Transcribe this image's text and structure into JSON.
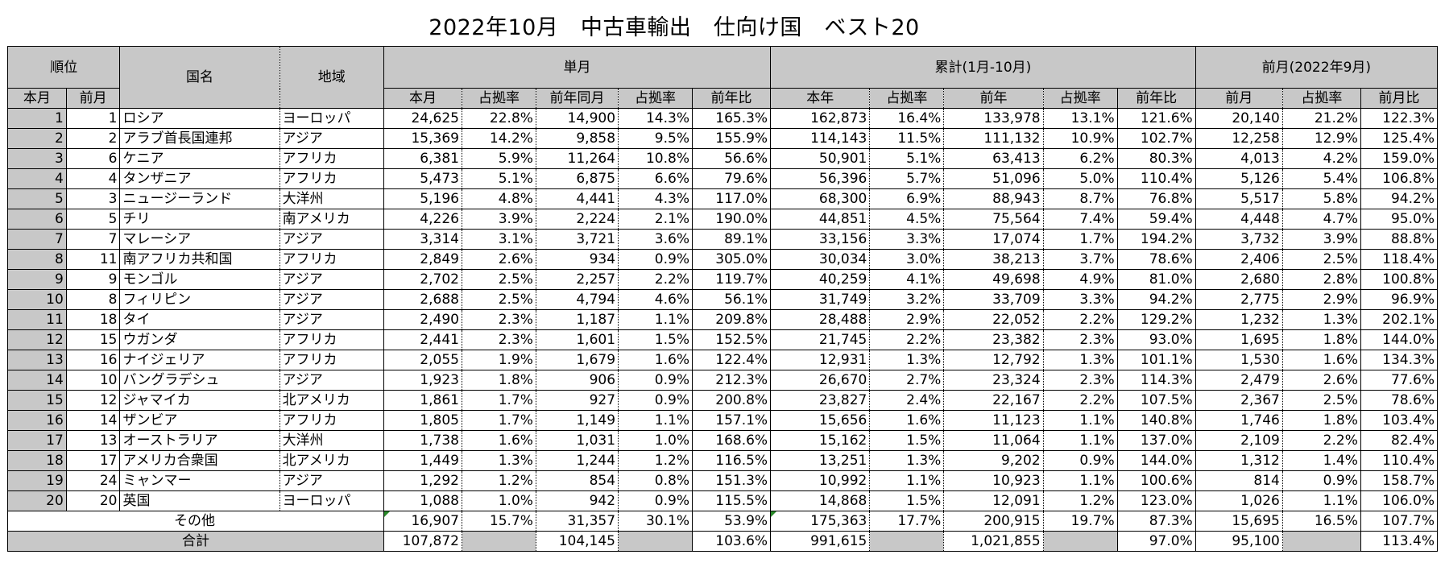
{
  "title": "2022年10月　中古車輸出　仕向け国　ベスト20",
  "headers": {
    "rank": "順位",
    "country": "国名",
    "region": "地域",
    "monthly": "単月",
    "cumulative": "累計(1月-10月)",
    "prev_month_group": "前月(2022年9月)",
    "rank_this": "本月",
    "rank_prev": "前月",
    "m_this": "本月",
    "m_share": "占拠率",
    "m_lastyear": "前年同月",
    "m_share2": "占拠率",
    "m_yoy": "前年比",
    "c_this": "本年",
    "c_share": "占拠率",
    "c_last": "前年",
    "c_share2": "占拠率",
    "c_yoy": "前年比",
    "p_prev": "前月",
    "p_share": "占拠率",
    "p_ratio": "前月比"
  },
  "rows": [
    {
      "r": "1",
      "p": "1",
      "country": "ロシア",
      "region": "ヨーロッパ",
      "m": "24,625",
      "ms": "22.8%",
      "ly": "14,900",
      "lys": "14.3%",
      "yoy": "165.3%",
      "c": "162,873",
      "cs": "16.4%",
      "cl": "133,978",
      "cls": "13.1%",
      "cyoy": "121.6%",
      "pm": "20,140",
      "pms": "21.2%",
      "pr": "122.3%"
    },
    {
      "r": "2",
      "p": "2",
      "country": "アラブ首長国連邦",
      "region": "アジア",
      "m": "15,369",
      "ms": "14.2%",
      "ly": "9,858",
      "lys": "9.5%",
      "yoy": "155.9%",
      "c": "114,143",
      "cs": "11.5%",
      "cl": "111,132",
      "cls": "10.9%",
      "cyoy": "102.7%",
      "pm": "12,258",
      "pms": "12.9%",
      "pr": "125.4%"
    },
    {
      "r": "3",
      "p": "6",
      "country": "ケニア",
      "region": "アフリカ",
      "m": "6,381",
      "ms": "5.9%",
      "ly": "11,264",
      "lys": "10.8%",
      "yoy": "56.6%",
      "c": "50,901",
      "cs": "5.1%",
      "cl": "63,413",
      "cls": "6.2%",
      "cyoy": "80.3%",
      "pm": "4,013",
      "pms": "4.2%",
      "pr": "159.0%"
    },
    {
      "r": "4",
      "p": "4",
      "country": "タンザニア",
      "region": "アフリカ",
      "m": "5,473",
      "ms": "5.1%",
      "ly": "6,875",
      "lys": "6.6%",
      "yoy": "79.6%",
      "c": "56,396",
      "cs": "5.7%",
      "cl": "51,096",
      "cls": "5.0%",
      "cyoy": "110.4%",
      "pm": "5,126",
      "pms": "5.4%",
      "pr": "106.8%"
    },
    {
      "r": "5",
      "p": "3",
      "country": "ニュージーランド",
      "region": "大洋州",
      "m": "5,196",
      "ms": "4.8%",
      "ly": "4,441",
      "lys": "4.3%",
      "yoy": "117.0%",
      "c": "68,300",
      "cs": "6.9%",
      "cl": "88,943",
      "cls": "8.7%",
      "cyoy": "76.8%",
      "pm": "5,517",
      "pms": "5.8%",
      "pr": "94.2%"
    },
    {
      "r": "6",
      "p": "5",
      "country": "チリ",
      "region": "南アメリカ",
      "m": "4,226",
      "ms": "3.9%",
      "ly": "2,224",
      "lys": "2.1%",
      "yoy": "190.0%",
      "c": "44,851",
      "cs": "4.5%",
      "cl": "75,564",
      "cls": "7.4%",
      "cyoy": "59.4%",
      "pm": "4,448",
      "pms": "4.7%",
      "pr": "95.0%"
    },
    {
      "r": "7",
      "p": "7",
      "country": "マレーシア",
      "region": "アジア",
      "m": "3,314",
      "ms": "3.1%",
      "ly": "3,721",
      "lys": "3.6%",
      "yoy": "89.1%",
      "c": "33,156",
      "cs": "3.3%",
      "cl": "17,074",
      "cls": "1.7%",
      "cyoy": "194.2%",
      "pm": "3,732",
      "pms": "3.9%",
      "pr": "88.8%"
    },
    {
      "r": "8",
      "p": "11",
      "country": "南アフリカ共和国",
      "region": "アフリカ",
      "m": "2,849",
      "ms": "2.6%",
      "ly": "934",
      "lys": "0.9%",
      "yoy": "305.0%",
      "c": "30,034",
      "cs": "3.0%",
      "cl": "38,213",
      "cls": "3.7%",
      "cyoy": "78.6%",
      "pm": "2,406",
      "pms": "2.5%",
      "pr": "118.4%"
    },
    {
      "r": "9",
      "p": "9",
      "country": "モンゴル",
      "region": "アジア",
      "m": "2,702",
      "ms": "2.5%",
      "ly": "2,257",
      "lys": "2.2%",
      "yoy": "119.7%",
      "c": "40,259",
      "cs": "4.1%",
      "cl": "49,698",
      "cls": "4.9%",
      "cyoy": "81.0%",
      "pm": "2,680",
      "pms": "2.8%",
      "pr": "100.8%"
    },
    {
      "r": "10",
      "p": "8",
      "country": "フィリピン",
      "region": "アジア",
      "m": "2,688",
      "ms": "2.5%",
      "ly": "4,794",
      "lys": "4.6%",
      "yoy": "56.1%",
      "c": "31,749",
      "cs": "3.2%",
      "cl": "33,709",
      "cls": "3.3%",
      "cyoy": "94.2%",
      "pm": "2,775",
      "pms": "2.9%",
      "pr": "96.9%"
    },
    {
      "r": "11",
      "p": "18",
      "country": "タイ",
      "region": "アジア",
      "m": "2,490",
      "ms": "2.3%",
      "ly": "1,187",
      "lys": "1.1%",
      "yoy": "209.8%",
      "c": "28,488",
      "cs": "2.9%",
      "cl": "22,052",
      "cls": "2.2%",
      "cyoy": "129.2%",
      "pm": "1,232",
      "pms": "1.3%",
      "pr": "202.1%"
    },
    {
      "r": "12",
      "p": "15",
      "country": "ウガンダ",
      "region": "アフリカ",
      "m": "2,441",
      "ms": "2.3%",
      "ly": "1,601",
      "lys": "1.5%",
      "yoy": "152.5%",
      "c": "21,745",
      "cs": "2.2%",
      "cl": "23,382",
      "cls": "2.3%",
      "cyoy": "93.0%",
      "pm": "1,695",
      "pms": "1.8%",
      "pr": "144.0%"
    },
    {
      "r": "13",
      "p": "16",
      "country": "ナイジェリア",
      "region": "アフリカ",
      "m": "2,055",
      "ms": "1.9%",
      "ly": "1,679",
      "lys": "1.6%",
      "yoy": "122.4%",
      "c": "12,931",
      "cs": "1.3%",
      "cl": "12,792",
      "cls": "1.3%",
      "cyoy": "101.1%",
      "pm": "1,530",
      "pms": "1.6%",
      "pr": "134.3%"
    },
    {
      "r": "14",
      "p": "10",
      "country": "バングラデシュ",
      "region": "アジア",
      "m": "1,923",
      "ms": "1.8%",
      "ly": "906",
      "lys": "0.9%",
      "yoy": "212.3%",
      "c": "26,670",
      "cs": "2.7%",
      "cl": "23,324",
      "cls": "2.3%",
      "cyoy": "114.3%",
      "pm": "2,479",
      "pms": "2.6%",
      "pr": "77.6%"
    },
    {
      "r": "15",
      "p": "12",
      "country": "ジャマイカ",
      "region": "北アメリカ",
      "m": "1,861",
      "ms": "1.7%",
      "ly": "927",
      "lys": "0.9%",
      "yoy": "200.8%",
      "c": "23,827",
      "cs": "2.4%",
      "cl": "22,167",
      "cls": "2.2%",
      "cyoy": "107.5%",
      "pm": "2,367",
      "pms": "2.5%",
      "pr": "78.6%"
    },
    {
      "r": "16",
      "p": "14",
      "country": "ザンビア",
      "region": "アフリカ",
      "m": "1,805",
      "ms": "1.7%",
      "ly": "1,149",
      "lys": "1.1%",
      "yoy": "157.1%",
      "c": "15,656",
      "cs": "1.6%",
      "cl": "11,123",
      "cls": "1.1%",
      "cyoy": "140.8%",
      "pm": "1,746",
      "pms": "1.8%",
      "pr": "103.4%"
    },
    {
      "r": "17",
      "p": "13",
      "country": "オーストラリア",
      "region": "大洋州",
      "m": "1,738",
      "ms": "1.6%",
      "ly": "1,031",
      "lys": "1.0%",
      "yoy": "168.6%",
      "c": "15,162",
      "cs": "1.5%",
      "cl": "11,064",
      "cls": "1.1%",
      "cyoy": "137.0%",
      "pm": "2,109",
      "pms": "2.2%",
      "pr": "82.4%"
    },
    {
      "r": "18",
      "p": "17",
      "country": "アメリカ合衆国",
      "region": "北アメリカ",
      "m": "1,449",
      "ms": "1.3%",
      "ly": "1,244",
      "lys": "1.2%",
      "yoy": "116.5%",
      "c": "13,251",
      "cs": "1.3%",
      "cl": "9,202",
      "cls": "0.9%",
      "cyoy": "144.0%",
      "pm": "1,312",
      "pms": "1.4%",
      "pr": "110.4%"
    },
    {
      "r": "19",
      "p": "24",
      "country": "ミャンマー",
      "region": "アジア",
      "m": "1,292",
      "ms": "1.2%",
      "ly": "854",
      "lys": "0.8%",
      "yoy": "151.3%",
      "c": "10,992",
      "cs": "1.1%",
      "cl": "10,923",
      "cls": "1.1%",
      "cyoy": "100.6%",
      "pm": "814",
      "pms": "0.9%",
      "pr": "158.7%"
    },
    {
      "r": "20",
      "p": "20",
      "country": "英国",
      "region": "ヨーロッパ",
      "m": "1,088",
      "ms": "1.0%",
      "ly": "942",
      "lys": "0.9%",
      "yoy": "115.5%",
      "c": "14,868",
      "cs": "1.5%",
      "cl": "12,091",
      "cls": "1.2%",
      "cyoy": "123.0%",
      "pm": "1,026",
      "pms": "1.1%",
      "pr": "106.0%"
    }
  ],
  "other": {
    "label": "その他",
    "m": "16,907",
    "ms": "15.7%",
    "ly": "31,357",
    "lys": "30.1%",
    "yoy": "53.9%",
    "c": "175,363",
    "cs": "17.7%",
    "cl": "200,915",
    "cls": "19.7%",
    "cyoy": "87.3%",
    "pm": "15,695",
    "pms": "16.5%",
    "pr": "107.7%"
  },
  "total": {
    "label": "合計",
    "m": "107,872",
    "ly": "104,145",
    "yoy": "103.6%",
    "c": "991,615",
    "cl": "1,021,855",
    "cyoy": "97.0%",
    "pm": "95,100",
    "pr": "113.4%"
  }
}
